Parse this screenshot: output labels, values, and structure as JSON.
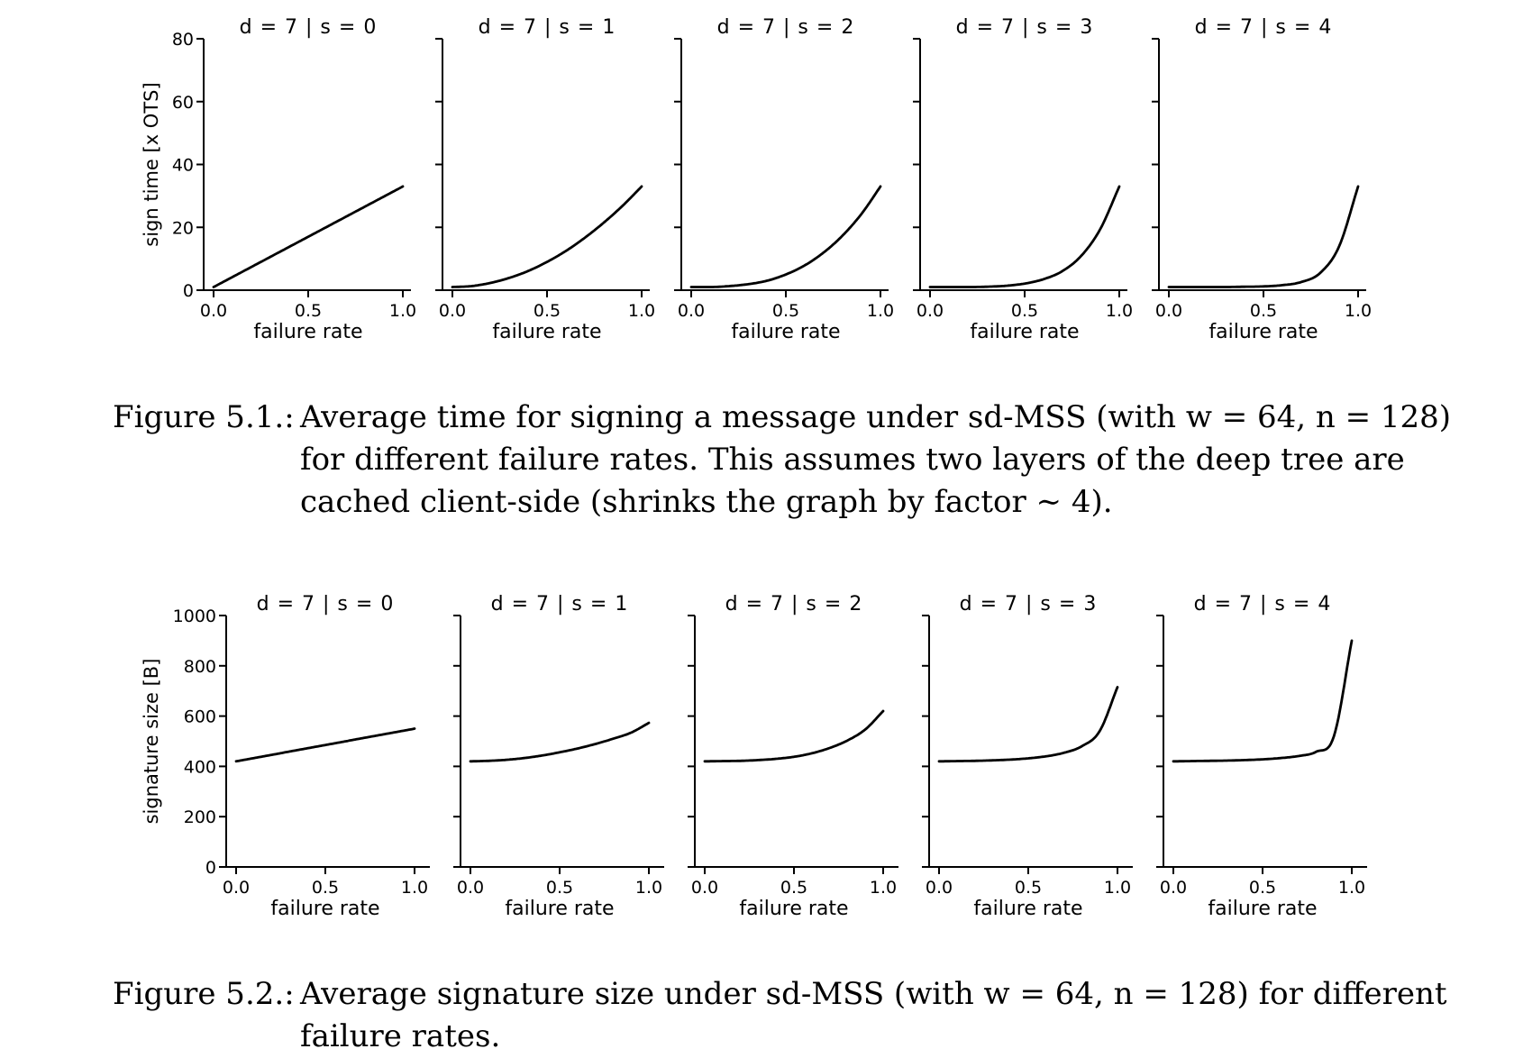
{
  "figure1": {
    "chart_data": {
      "type": "line",
      "ylabel": "sign time [x OTS]",
      "xlabel": "failure rate",
      "ylim": [
        0,
        80
      ],
      "yticks": [
        0,
        20,
        40,
        60,
        80
      ],
      "xlim": [
        0.0,
        1.0
      ],
      "xticks": [
        "0.0",
        "0.5",
        "1.0"
      ],
      "panels": [
        {
          "title": "d = 7 | s = 0",
          "x": [
            0.0,
            0.1,
            0.2,
            0.3,
            0.4,
            0.5,
            0.6,
            0.7,
            0.8,
            0.9,
            1.0
          ],
          "y": [
            1.0,
            4.2,
            7.4,
            10.6,
            13.8,
            17.0,
            20.2,
            23.4,
            26.6,
            29.8,
            33.0
          ]
        },
        {
          "title": "d = 7 | s = 1",
          "x": [
            0.0,
            0.1,
            0.2,
            0.3,
            0.4,
            0.5,
            0.6,
            0.7,
            0.8,
            0.9,
            1.0
          ],
          "y": [
            1.0,
            1.3,
            2.3,
            3.9,
            6.1,
            9.0,
            12.5,
            16.7,
            21.5,
            26.9,
            33.0
          ]
        },
        {
          "title": "d = 7 | s = 2",
          "x": [
            0.0,
            0.1,
            0.2,
            0.3,
            0.4,
            0.5,
            0.6,
            0.7,
            0.8,
            0.9,
            1.0
          ],
          "y": [
            1.0,
            1.0,
            1.3,
            1.9,
            3.0,
            5.0,
            7.9,
            12.0,
            17.4,
            24.3,
            33.0
          ]
        },
        {
          "title": "d = 7 | s = 3",
          "x": [
            0.0,
            0.1,
            0.2,
            0.3,
            0.4,
            0.5,
            0.6,
            0.7,
            0.8,
            0.9,
            1.0
          ],
          "y": [
            1.0,
            1.0,
            1.0,
            1.1,
            1.4,
            2.1,
            3.5,
            6.1,
            11.0,
            19.5,
            33.0
          ]
        },
        {
          "title": "d = 7 | s = 4",
          "x": [
            0.0,
            0.1,
            0.2,
            0.3,
            0.4,
            0.5,
            0.6,
            0.7,
            0.8,
            0.9,
            1.0
          ],
          "y": [
            1.0,
            1.0,
            1.0,
            1.0,
            1.1,
            1.2,
            1.6,
            2.6,
            5.5,
            14.0,
            33.0
          ]
        }
      ]
    },
    "caption_label": "Figure 5.1.:",
    "caption_lines": [
      "Average time for signing a message under sd-MSS (with w = 64, n = 128)",
      "for different failure rates. This assumes two layers of the deep tree are",
      "cached client-side (shrinks the graph by factor ∼ 4)."
    ]
  },
  "figure2": {
    "chart_data": {
      "type": "line",
      "ylabel": "signature size [B]",
      "xlabel": "failure rate",
      "ylim": [
        0,
        1000
      ],
      "yticks": [
        0,
        200,
        400,
        600,
        800,
        1000
      ],
      "xlim": [
        0.0,
        1.0
      ],
      "xticks": [
        "0.0",
        "0.5",
        "1.0"
      ],
      "panels": [
        {
          "title": "d = 7 | s = 0",
          "x": [
            0.0,
            0.1,
            0.2,
            0.3,
            0.4,
            0.5,
            0.6,
            0.7,
            0.8,
            0.9,
            1.0
          ],
          "y": [
            420,
            433,
            446,
            459,
            472,
            485,
            498,
            511,
            524,
            537,
            550
          ]
        },
        {
          "title": "d = 7 | s = 1",
          "x": [
            0.0,
            0.1,
            0.2,
            0.3,
            0.4,
            0.5,
            0.6,
            0.7,
            0.8,
            0.9,
            1.0
          ],
          "y": [
            420,
            422,
            426,
            433,
            443,
            456,
            471,
            489,
            510,
            534,
            573
          ]
        },
        {
          "title": "d = 7 | s = 2",
          "x": [
            0.0,
            0.1,
            0.2,
            0.3,
            0.4,
            0.5,
            0.6,
            0.7,
            0.8,
            0.9,
            1.0
          ],
          "y": [
            420,
            421,
            422,
            425,
            430,
            438,
            452,
            473,
            503,
            547,
            620
          ]
        },
        {
          "title": "d = 7 | s = 3",
          "x": [
            0.0,
            0.1,
            0.2,
            0.3,
            0.4,
            0.5,
            0.6,
            0.7,
            0.8,
            0.9,
            1.0
          ],
          "y": [
            420,
            421,
            422,
            424,
            427,
            432,
            440,
            454,
            480,
            540,
            715
          ]
        },
        {
          "title": "d = 7 | s = 4",
          "x": [
            0.0,
            0.1,
            0.2,
            0.3,
            0.4,
            0.5,
            0.6,
            0.7,
            0.8,
            0.9,
            1.0
          ],
          "y": [
            420,
            421,
            422,
            423,
            425,
            428,
            433,
            441,
            458,
            520,
            900
          ]
        }
      ]
    },
    "caption_label": "Figure 5.2.:",
    "caption_lines": [
      "Average signature size under sd-MSS (with w = 64, n = 128) for different",
      "failure rates."
    ]
  }
}
